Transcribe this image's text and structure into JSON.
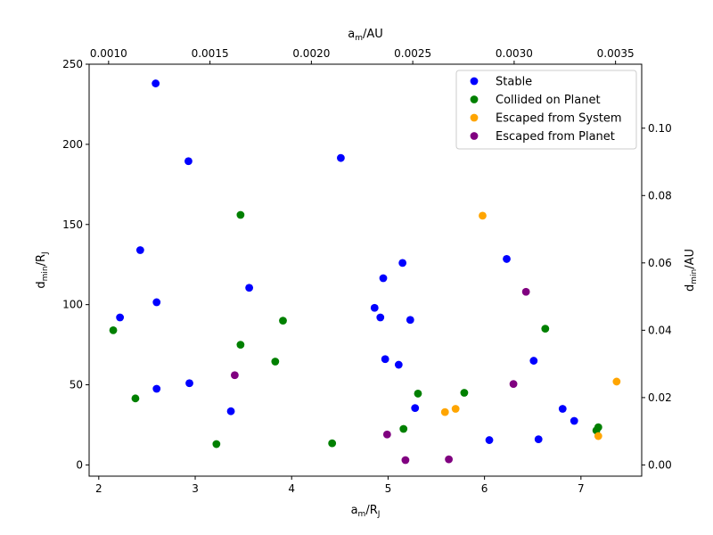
{
  "chart_data": {
    "type": "scatter",
    "xlabel": "a_m/R_J",
    "ylabel": "d_min/R_J",
    "top_xlabel": "a_m/AU",
    "right_ylabel": "d_min/AU",
    "xlim": [
      1.9,
      7.63
    ],
    "ylim": [
      -7,
      250
    ],
    "xticks": [
      2,
      3,
      4,
      5,
      6,
      7
    ],
    "yticks": [
      0,
      50,
      100,
      150,
      200,
      250
    ],
    "top_xlim": [
      0.000904,
      0.003629
    ],
    "top_xticks": [
      "0.0010",
      "0.0015",
      "0.0020",
      "0.0025",
      "0.0030",
      "0.0035"
    ],
    "right_ylim": [
      -0.00333,
      0.119
    ],
    "right_yticks": [
      "0.00",
      "0.02",
      "0.04",
      "0.06",
      "0.08",
      "0.10"
    ],
    "legend_position": "top-right",
    "series": [
      {
        "name": "Stable",
        "color": "#0000ff",
        "points": [
          [
            2.22,
            92
          ],
          [
            2.43,
            134
          ],
          [
            2.59,
            238
          ],
          [
            2.6,
            101.5
          ],
          [
            2.6,
            47.5
          ],
          [
            2.93,
            189.5
          ],
          [
            2.94,
            51
          ],
          [
            3.37,
            33.5
          ],
          [
            3.56,
            110.5
          ],
          [
            4.51,
            191.5
          ],
          [
            4.86,
            98
          ],
          [
            4.92,
            92
          ],
          [
            4.95,
            116.5
          ],
          [
            4.97,
            66
          ],
          [
            5.11,
            62.5
          ],
          [
            5.15,
            126
          ],
          [
            5.23,
            90.5
          ],
          [
            5.28,
            35.5
          ],
          [
            6.05,
            15.5
          ],
          [
            6.23,
            128.5
          ],
          [
            6.51,
            65
          ],
          [
            6.56,
            16
          ],
          [
            6.81,
            35
          ],
          [
            6.93,
            27.5
          ]
        ]
      },
      {
        "name": "Collided on Planet",
        "color": "#008000",
        "points": [
          [
            2.15,
            84
          ],
          [
            2.38,
            41.5
          ],
          [
            3.22,
            13
          ],
          [
            3.47,
            156
          ],
          [
            3.47,
            75
          ],
          [
            3.83,
            64.5
          ],
          [
            3.91,
            90
          ],
          [
            4.42,
            13.5
          ],
          [
            5.16,
            22.5
          ],
          [
            5.31,
            44.5
          ],
          [
            5.79,
            45
          ],
          [
            6.63,
            85
          ],
          [
            7.16,
            21.5
          ],
          [
            7.18,
            23.5
          ]
        ]
      },
      {
        "name": "Escaped from System",
        "color": "#ffa500",
        "points": [
          [
            5.59,
            33
          ],
          [
            5.7,
            35
          ],
          [
            5.98,
            155.5
          ],
          [
            7.18,
            18
          ],
          [
            7.37,
            52
          ]
        ]
      },
      {
        "name": "Escaped from Planet",
        "color": "#800080",
        "points": [
          [
            3.41,
            56
          ],
          [
            4.99,
            19
          ],
          [
            5.18,
            3
          ],
          [
            5.63,
            3.5
          ],
          [
            6.3,
            50.5
          ],
          [
            6.43,
            108
          ]
        ]
      }
    ]
  }
}
